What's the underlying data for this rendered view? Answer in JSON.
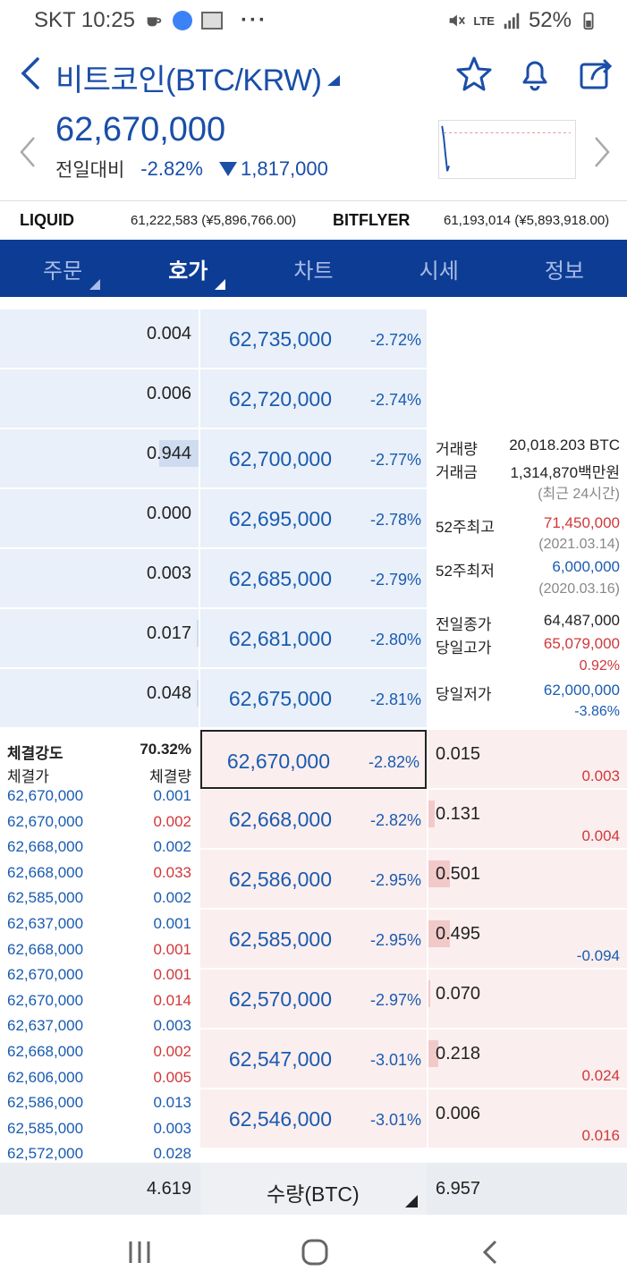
{
  "status": {
    "carrier_time": "SKT 10:25",
    "battery": "52%",
    "network": "LTE"
  },
  "header": {
    "title": "비트코인(BTC/KRW)"
  },
  "price": {
    "current": "62,670,000",
    "change_label": "전일대비",
    "change_rate": "-2.82%",
    "change_amount": "1,817,000"
  },
  "exchanges": [
    {
      "name": "LIQUID",
      "value": "61,222,583 (¥5,896,766.00)"
    },
    {
      "name": "BITFLYER",
      "value": "61,193,014 (¥5,893,918.00)"
    }
  ],
  "tabs": [
    "주문",
    "호가",
    "차트",
    "시세",
    "정보"
  ],
  "asks": [
    {
      "qty": "0.004",
      "price": "62,735,000",
      "rate": "-2.72%",
      "bar": 0.0
    },
    {
      "qty": "0.006",
      "price": "62,720,000",
      "rate": "-2.74%",
      "bar": 0.0
    },
    {
      "qty": "0.944",
      "price": "62,700,000",
      "rate": "-2.77%",
      "bar": 0.2
    },
    {
      "qty": "0.000",
      "price": "62,695,000",
      "rate": "-2.78%",
      "bar": 0.0
    },
    {
      "qty": "0.003",
      "price": "62,685,000",
      "rate": "-2.79%",
      "bar": 0.0
    },
    {
      "qty": "0.017",
      "price": "62,681,000",
      "rate": "-2.80%",
      "bar": 0.01
    },
    {
      "qty": "0.048",
      "price": "62,675,000",
      "rate": "-2.81%",
      "bar": 0.01
    }
  ],
  "bids": [
    {
      "qty": "0.015",
      "price": "62,670,000",
      "rate": "-2.82%",
      "diff": "0.003",
      "diff_color": "red",
      "bar": 0.0
    },
    {
      "qty": "0.131",
      "price": "62,668,000",
      "rate": "-2.82%",
      "diff": "0.004",
      "diff_color": "red",
      "bar": 0.03
    },
    {
      "qty": "0.501",
      "price": "62,586,000",
      "rate": "-2.95%",
      "diff": "",
      "diff_color": "red",
      "bar": 0.11
    },
    {
      "qty": "0.495",
      "price": "62,585,000",
      "rate": "-2.95%",
      "diff": "-0.094",
      "diff_color": "blue",
      "bar": 0.11
    },
    {
      "qty": "0.070",
      "price": "62,570,000",
      "rate": "-2.97%",
      "diff": "",
      "diff_color": "red",
      "bar": 0.01
    },
    {
      "qty": "0.218",
      "price": "62,547,000",
      "rate": "-3.01%",
      "diff": "0.024",
      "diff_color": "red",
      "bar": 0.05
    },
    {
      "qty": "0.006",
      "price": "62,546,000",
      "rate": "-3.01%",
      "diff": "0.016",
      "diff_color": "red",
      "bar": 0.0
    }
  ],
  "info": {
    "volume_label": "거래량",
    "volume": "20,018.203 BTC",
    "amount_label": "거래금",
    "amount": "1,314,870백만원",
    "period": "(최근 24시간)",
    "high52_label": "52주최고",
    "high52": "71,450,000",
    "high52_date": "(2021.03.14)",
    "low52_label": "52주최저",
    "low52": "6,000,000",
    "low52_date": "(2020.03.16)",
    "prev_close_label": "전일종가",
    "prev_close": "64,487,000",
    "day_high_label": "당일고가",
    "day_high": "65,079,000",
    "day_high_rate": "0.92%",
    "day_low_label": "당일저가",
    "day_low": "62,000,000",
    "day_low_rate": "-3.86%"
  },
  "trades": {
    "strength_label": "체결강도",
    "strength": "70.32%",
    "price_label": "체결가",
    "qty_label": "체결량",
    "rows": [
      {
        "price": "62,670,000",
        "qty": "0.001",
        "color": "blue"
      },
      {
        "price": "62,670,000",
        "qty": "0.002",
        "color": "red"
      },
      {
        "price": "62,668,000",
        "qty": "0.002",
        "color": "blue"
      },
      {
        "price": "62,668,000",
        "qty": "0.033",
        "color": "red"
      },
      {
        "price": "62,585,000",
        "qty": "0.002",
        "color": "blue"
      },
      {
        "price": "62,637,000",
        "qty": "0.001",
        "color": "blue"
      },
      {
        "price": "62,668,000",
        "qty": "0.001",
        "color": "red"
      },
      {
        "price": "62,670,000",
        "qty": "0.001",
        "color": "red"
      },
      {
        "price": "62,670,000",
        "qty": "0.014",
        "color": "red"
      },
      {
        "price": "62,637,000",
        "qty": "0.003",
        "color": "blue"
      },
      {
        "price": "62,668,000",
        "qty": "0.002",
        "color": "red"
      },
      {
        "price": "62,606,000",
        "qty": "0.005",
        "color": "red"
      },
      {
        "price": "62,586,000",
        "qty": "0.013",
        "color": "blue"
      },
      {
        "price": "62,585,000",
        "qty": "0.003",
        "color": "blue"
      },
      {
        "price": "62,572,000",
        "qty": "0.028",
        "color": "blue"
      }
    ]
  },
  "footer": {
    "ask_total": "4.619",
    "unit_label": "수량(BTC)",
    "bid_total": "6.957"
  },
  "icons": [
    "back-icon",
    "star-icon",
    "bell-icon",
    "share-icon",
    "chevron-left-icon",
    "chevron-right-icon",
    "down-triangle-icon"
  ]
}
